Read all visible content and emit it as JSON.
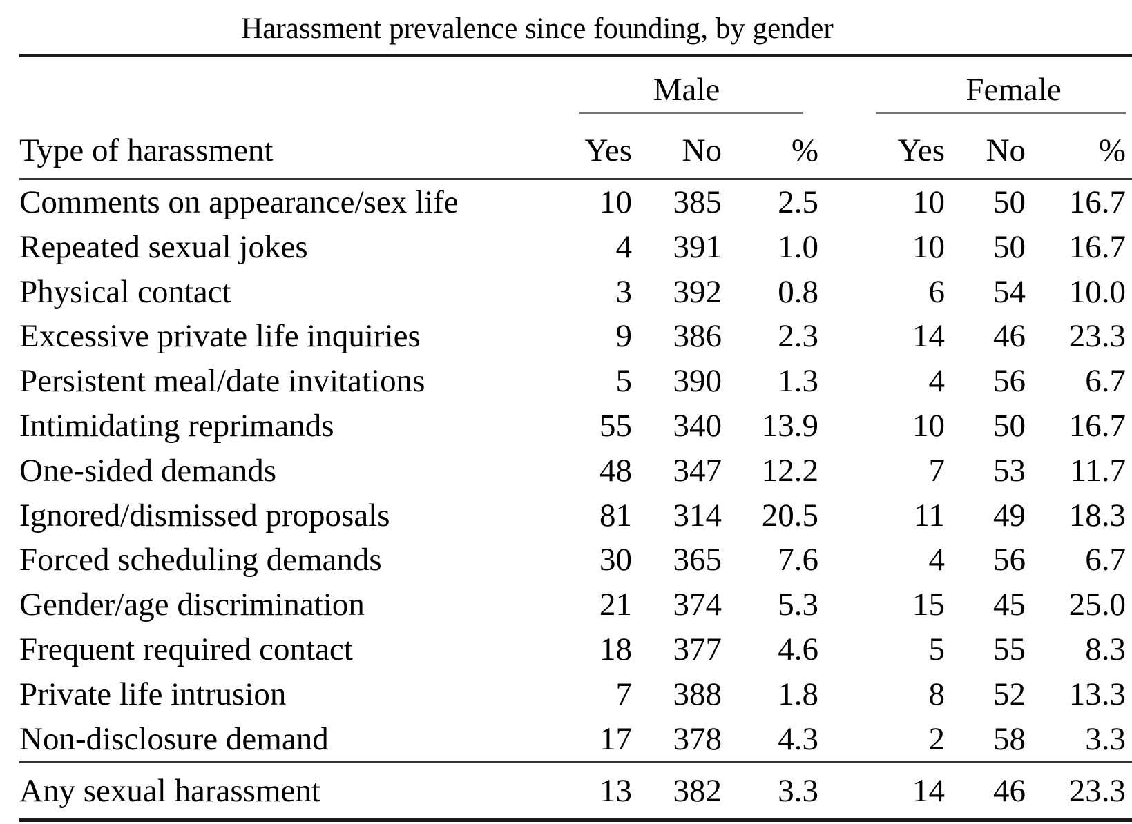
{
  "title": "Harassment prevalence since founding, by gender",
  "table": {
    "row_header": "Type of harassment",
    "groups": {
      "male": "Male",
      "female": "Female"
    },
    "sub_headers": {
      "yes": "Yes",
      "no": "No",
      "pct": "%"
    },
    "rows": [
      {
        "label": "Comments on appearance/sex life",
        "male": {
          "yes": "10",
          "no": "385",
          "pct": "2.5"
        },
        "female": {
          "yes": "10",
          "no": "50",
          "pct": "16.7"
        }
      },
      {
        "label": "Repeated sexual jokes",
        "male": {
          "yes": "4",
          "no": "391",
          "pct": "1.0"
        },
        "female": {
          "yes": "10",
          "no": "50",
          "pct": "16.7"
        }
      },
      {
        "label": "Physical contact",
        "male": {
          "yes": "3",
          "no": "392",
          "pct": "0.8"
        },
        "female": {
          "yes": "6",
          "no": "54",
          "pct": "10.0"
        }
      },
      {
        "label": "Excessive private life inquiries",
        "male": {
          "yes": "9",
          "no": "386",
          "pct": "2.3"
        },
        "female": {
          "yes": "14",
          "no": "46",
          "pct": "23.3"
        }
      },
      {
        "label": "Persistent meal/date invitations",
        "male": {
          "yes": "5",
          "no": "390",
          "pct": "1.3"
        },
        "female": {
          "yes": "4",
          "no": "56",
          "pct": "6.7"
        }
      },
      {
        "label": "Intimidating reprimands",
        "male": {
          "yes": "55",
          "no": "340",
          "pct": "13.9"
        },
        "female": {
          "yes": "10",
          "no": "50",
          "pct": "16.7"
        }
      },
      {
        "label": "One-sided demands",
        "male": {
          "yes": "48",
          "no": "347",
          "pct": "12.2"
        },
        "female": {
          "yes": "7",
          "no": "53",
          "pct": "11.7"
        }
      },
      {
        "label": "Ignored/dismissed proposals",
        "male": {
          "yes": "81",
          "no": "314",
          "pct": "20.5"
        },
        "female": {
          "yes": "11",
          "no": "49",
          "pct": "18.3"
        }
      },
      {
        "label": "Forced scheduling demands",
        "male": {
          "yes": "30",
          "no": "365",
          "pct": "7.6"
        },
        "female": {
          "yes": "4",
          "no": "56",
          "pct": "6.7"
        }
      },
      {
        "label": "Gender/age discrimination",
        "male": {
          "yes": "21",
          "no": "374",
          "pct": "5.3"
        },
        "female": {
          "yes": "15",
          "no": "45",
          "pct": "25.0"
        }
      },
      {
        "label": "Frequent required contact",
        "male": {
          "yes": "18",
          "no": "377",
          "pct": "4.6"
        },
        "female": {
          "yes": "5",
          "no": "55",
          "pct": "8.3"
        }
      },
      {
        "label": "Private life intrusion",
        "male": {
          "yes": "7",
          "no": "388",
          "pct": "1.8"
        },
        "female": {
          "yes": "8",
          "no": "52",
          "pct": "13.3"
        }
      },
      {
        "label": "Non-disclosure demand",
        "male": {
          "yes": "17",
          "no": "378",
          "pct": "4.3"
        },
        "female": {
          "yes": "2",
          "no": "58",
          "pct": "3.3"
        }
      }
    ],
    "footer": {
      "label": "Any sexual harassment",
      "male": {
        "yes": "13",
        "no": "382",
        "pct": "3.3"
      },
      "female": {
        "yes": "14",
        "no": "46",
        "pct": "23.3"
      }
    }
  },
  "colors": {
    "heavy_rule": "#1b1b1b",
    "mid_rule": "#333333",
    "light_rule": "#767676",
    "text": "#000000",
    "background": "#ffffff"
  }
}
